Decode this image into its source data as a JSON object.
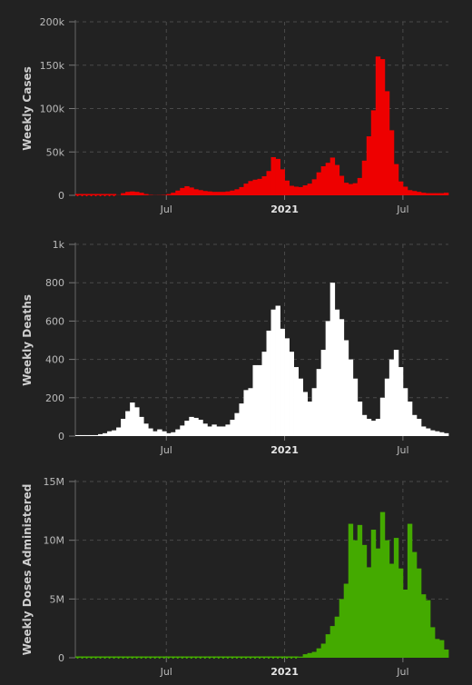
{
  "chart_data": [
    {
      "type": "bar",
      "ylabel": "Weekly Cases",
      "ytick_labels": [
        "0",
        "50k",
        "100k",
        "150k",
        "200k"
      ],
      "ytick_values": [
        0,
        50000,
        100000,
        150000,
        200000
      ],
      "ylim": [
        0,
        200000
      ],
      "xtick_labels": [
        "Jul",
        "2021",
        "Jul"
      ],
      "xtick_weeks": [
        20,
        46,
        72
      ],
      "color": "#ee0000",
      "grid": true,
      "values": [
        0,
        0,
        0,
        0,
        0,
        0,
        0,
        0,
        0,
        200,
        2500,
        4000,
        4500,
        4000,
        3000,
        1500,
        500,
        200,
        300,
        500,
        1500,
        3000,
        5500,
        8500,
        10500,
        9000,
        7000,
        6000,
        5000,
        4500,
        4000,
        4000,
        4000,
        4500,
        5500,
        7000,
        9500,
        13500,
        16500,
        18000,
        19000,
        22000,
        28000,
        44000,
        42000,
        30000,
        17000,
        11000,
        10000,
        9500,
        11500,
        13500,
        18500,
        26500,
        33500,
        37500,
        43500,
        35000,
        22500,
        14500,
        13000,
        14000,
        20000,
        40000,
        68000,
        98000,
        160000,
        157000,
        120000,
        75000,
        36000,
        16000,
        10000,
        6000,
        5000,
        4000,
        3000,
        2500,
        2500,
        2500,
        2500,
        3000
      ]
    },
    {
      "type": "bar",
      "ylabel": "Weekly Deaths",
      "ytick_labels": [
        "0",
        "200",
        "400",
        "600",
        "800",
        "1k"
      ],
      "ytick_values": [
        0,
        200,
        400,
        600,
        800,
        1000
      ],
      "ylim": [
        0,
        1000
      ],
      "xtick_labels": [
        "Jul",
        "2021",
        "Jul"
      ],
      "xtick_weeks": [
        20,
        46,
        72
      ],
      "color": "#ffffff",
      "grid": true,
      "values": [
        5,
        5,
        5,
        5,
        5,
        10,
        15,
        25,
        30,
        45,
        90,
        130,
        175,
        150,
        100,
        65,
        40,
        25,
        35,
        25,
        15,
        20,
        35,
        55,
        80,
        100,
        95,
        85,
        65,
        50,
        60,
        50,
        50,
        60,
        85,
        120,
        170,
        240,
        250,
        370,
        370,
        440,
        550,
        660,
        680,
        560,
        510,
        440,
        360,
        300,
        230,
        180,
        250,
        350,
        450,
        600,
        800,
        660,
        610,
        500,
        400,
        300,
        180,
        110,
        90,
        80,
        90,
        200,
        300,
        400,
        450,
        360,
        250,
        180,
        110,
        90,
        50,
        40,
        30,
        25,
        20,
        15
      ]
    },
    {
      "type": "bar",
      "ylabel": "Weekly Doses Administered",
      "ytick_labels": [
        "0",
        "5M",
        "10M",
        "15M"
      ],
      "ytick_values": [
        0,
        5000000,
        10000000,
        15000000
      ],
      "ylim": [
        0,
        15000000
      ],
      "xtick_labels": [
        "Jul",
        "2021",
        "Jul"
      ],
      "xtick_weeks": [
        20,
        46,
        72
      ],
      "color": "#44aa00",
      "grid": true,
      "values": [
        0,
        0,
        0,
        0,
        0,
        0,
        0,
        0,
        0,
        0,
        0,
        0,
        0,
        0,
        0,
        0,
        0,
        0,
        0,
        0,
        0,
        0,
        0,
        0,
        0,
        0,
        0,
        0,
        0,
        0,
        0,
        0,
        0,
        0,
        0,
        0,
        0,
        0,
        0,
        0,
        0,
        0,
        0,
        0,
        0,
        0,
        0,
        0,
        0,
        100000,
        300000,
        400000,
        500000,
        800000,
        1200000,
        2000000,
        2700000,
        3500000,
        5000000,
        6300000,
        11400000,
        10000000,
        11300000,
        9600000,
        7700000,
        10900000,
        9300000,
        12400000,
        10000000,
        8000000,
        10200000,
        7600000,
        5800000,
        11400000,
        9000000,
        7600000,
        5400000,
        4900000,
        2600000,
        1600000,
        1500000,
        700000
      ]
    }
  ]
}
